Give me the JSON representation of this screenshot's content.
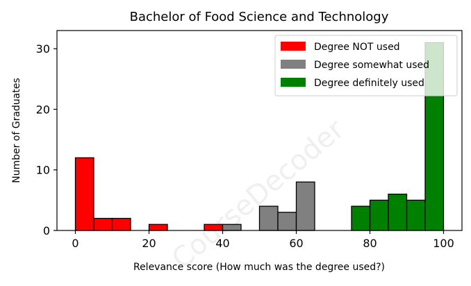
{
  "chart_data": {
    "type": "bar",
    "title": "Bachelor of Food Science and Technology",
    "xlabel": "Relevance score (How much was the degree used?)",
    "ylabel": "Number of Graduates",
    "xlim": [
      -5,
      105
    ],
    "ylim": [
      0,
      33
    ],
    "xticks": [
      "0",
      "20",
      "40",
      "60",
      "80",
      "100"
    ],
    "yticks": [
      "0",
      "10",
      "20",
      "30"
    ],
    "bin_width": 5,
    "legend": {
      "placement": "top-right"
    },
    "watermark": "CourseDecoder",
    "series": [
      {
        "name": "Degree NOT used",
        "color": "#ff0000",
        "bins": [
          {
            "x0": 0,
            "x1": 5,
            "value": 12
          },
          {
            "x0": 5,
            "x1": 10,
            "value": 2
          },
          {
            "x0": 10,
            "x1": 15,
            "value": 2
          },
          {
            "x0": 20,
            "x1": 25,
            "value": 1
          },
          {
            "x0": 35,
            "x1": 40,
            "value": 1
          }
        ]
      },
      {
        "name": "Degree somewhat used",
        "color": "#808080",
        "bins": [
          {
            "x0": 40,
            "x1": 45,
            "value": 1
          },
          {
            "x0": 50,
            "x1": 55,
            "value": 4
          },
          {
            "x0": 55,
            "x1": 60,
            "value": 3
          },
          {
            "x0": 60,
            "x1": 65,
            "value": 8
          }
        ]
      },
      {
        "name": "Degree definitely used",
        "color": "#008000",
        "bins": [
          {
            "x0": 75,
            "x1": 80,
            "value": 4
          },
          {
            "x0": 80,
            "x1": 85,
            "value": 5
          },
          {
            "x0": 85,
            "x1": 90,
            "value": 6
          },
          {
            "x0": 90,
            "x1": 95,
            "value": 5
          },
          {
            "x0": 95,
            "x1": 100,
            "value": 31
          }
        ]
      }
    ]
  }
}
